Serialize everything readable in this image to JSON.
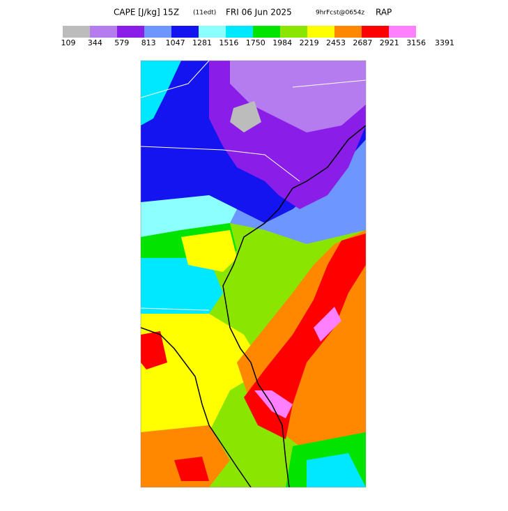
{
  "header": {
    "title_parts": [
      "CAPE [J/kg] 15Z",
      "(11edt)",
      "FRI 06 Jun 2025",
      "9hrFcst@0654z",
      "RAP"
    ]
  },
  "colorbar": {
    "colors": [
      "#bcbcbc",
      "#b57cf0",
      "#8a1ee8",
      "#6e96ff",
      "#1414f0",
      "#8cffff",
      "#00e8ff",
      "#00e400",
      "#8ae600",
      "#ffff00",
      "#ff8800",
      "#ff0000",
      "#ff80ff"
    ],
    "labels": [
      109,
      344,
      579,
      813,
      1047,
      1281,
      1516,
      1750,
      1984,
      2219,
      2453,
      2687,
      2921,
      3156,
      3391
    ]
  }
}
